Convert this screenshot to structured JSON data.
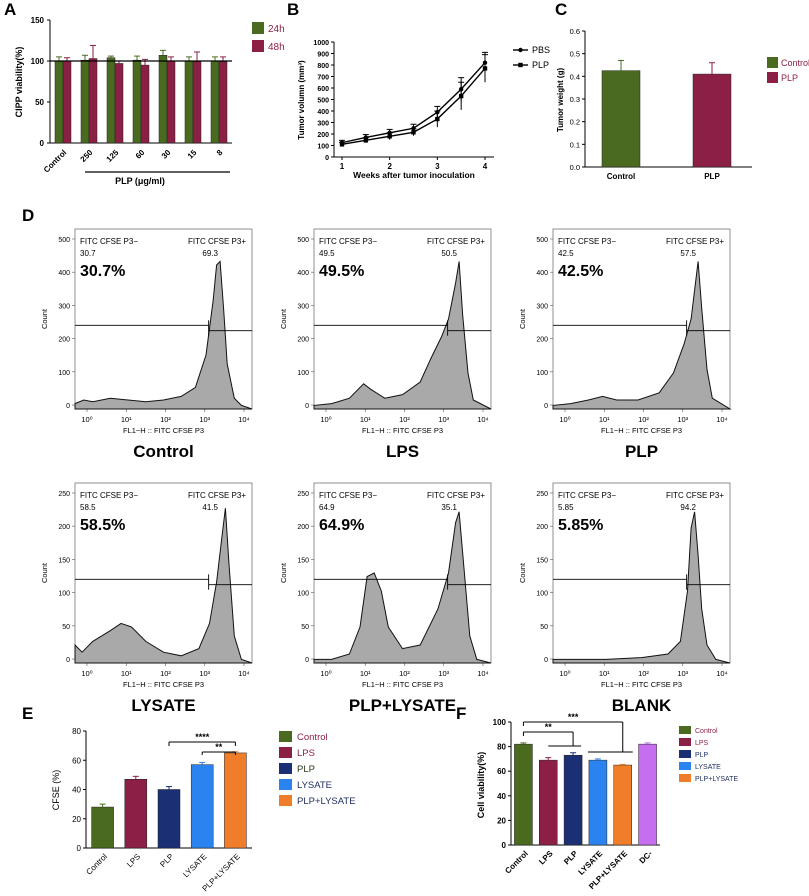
{
  "panel_letters": {
    "a": "A",
    "b": "B",
    "c": "C",
    "d": "D",
    "e": "E",
    "f": "F"
  },
  "colors": {
    "green": "#4a6b1f",
    "maroon": "#8b1f45",
    "navy": "#1b2f74",
    "blue": "#2b83f0",
    "orange": "#ef7d29",
    "violet": "#c56ff0",
    "gray": "#a9a9a9"
  },
  "chart_data": [
    {
      "id": "A",
      "type": "bar",
      "categories": [
        "Control",
        "250",
        "125",
        "60",
        "30",
        "15",
        "8"
      ],
      "series": [
        {
          "name": "24h",
          "values": [
            100,
            101,
            104,
            101,
            107,
            100,
            100
          ],
          "errors": [
            5,
            6,
            2,
            5,
            6,
            5,
            5
          ]
        },
        {
          "name": "48h",
          "values": [
            100,
            103,
            97,
            95,
            100,
            99,
            99
          ],
          "errors": [
            4,
            16,
            3,
            7,
            5,
            12,
            6
          ]
        }
      ],
      "ylabel": "CIPP viability(%)",
      "xlabel": "PLP (μg/ml)",
      "ylim": [
        0,
        150
      ],
      "yticks": [
        0,
        50,
        100,
        150
      ],
      "reference_line": 100
    },
    {
      "id": "B",
      "type": "line",
      "x": [
        1,
        1.5,
        2,
        2.5,
        3,
        3.5,
        4
      ],
      "xticks": [
        "1",
        "2",
        "3",
        "4"
      ],
      "series": [
        {
          "name": "PBS",
          "values": [
            125,
            170,
            210,
            250,
            390,
            590,
            820
          ],
          "errors": [
            20,
            25,
            30,
            35,
            50,
            100,
            90
          ]
        },
        {
          "name": "PLP",
          "values": [
            110,
            145,
            180,
            215,
            330,
            530,
            770
          ],
          "errors": [
            18,
            22,
            30,
            30,
            70,
            120,
            120
          ]
        }
      ],
      "ylabel": "Tumor volumn (mm³)",
      "xlabel": "Weeks after tumor inoculation",
      "ylim": [
        0,
        1000
      ],
      "yticks": [
        0,
        100,
        200,
        300,
        400,
        500,
        600,
        700,
        800,
        900,
        1000
      ]
    },
    {
      "id": "C",
      "type": "bar",
      "categories": [
        "Control",
        "PLP"
      ],
      "values": [
        0.425,
        0.41
      ],
      "errors": [
        0.045,
        0.05
      ],
      "legend": [
        "Control",
        "PLP"
      ],
      "ylabel": "Tumor weight (g)",
      "ylim": [
        0,
        0.6
      ],
      "yticks": [
        "0.0",
        "0.1",
        "0.2",
        "0.3",
        "0.4",
        "0.5",
        "0.6"
      ]
    },
    {
      "id": "E",
      "type": "bar",
      "categories": [
        "Control",
        "LPS",
        "PLP",
        "LYSATE",
        "PLP+LYSATE"
      ],
      "values": [
        28,
        47,
        40,
        57,
        65
      ],
      "errors": [
        2,
        2,
        2,
        1.5,
        0.8
      ],
      "legend": [
        "Control",
        "LPS",
        "PLP",
        "LYSATE",
        "PLP+LYSATE"
      ],
      "ylabel": "CFSE  (%)",
      "ylim": [
        0,
        80
      ],
      "yticks": [
        0,
        20,
        40,
        60,
        80
      ],
      "sig": [
        {
          "text": "****"
        },
        {
          "text": "**"
        }
      ]
    },
    {
      "id": "F",
      "type": "bar",
      "categories": [
        "Control",
        "LPS",
        "PLP",
        "LYSATE",
        "PLP+LYSATE",
        "DC-"
      ],
      "values": [
        82,
        69,
        73,
        69,
        65,
        82
      ],
      "errors": [
        1,
        2,
        2,
        1,
        0.5,
        1
      ],
      "legend": [
        "Control",
        "LPS",
        "PLP",
        "LYSATE",
        "PLP+LYSATE"
      ],
      "ylabel": "Cell viability(%)",
      "ylim": [
        0,
        100
      ],
      "yticks": [
        0,
        20,
        40,
        60,
        80,
        100
      ],
      "sig": [
        {
          "text": "**"
        },
        {
          "text": "***"
        }
      ]
    }
  ],
  "flow": {
    "gate_left": "FITC CFSE P3−",
    "gate_right": "FITC CFSE P3+",
    "xlabel": "FL1−H :: FITC CFSE P3",
    "ylabel": "Count",
    "xticks": [
      "10⁰",
      "10¹",
      "10²",
      "10³",
      "10⁴"
    ],
    "yticks_500": [
      "0",
      "100",
      "200",
      "300",
      "400",
      "500"
    ],
    "yticks_250": [
      "0",
      "50",
      "100",
      "150",
      "200",
      "250"
    ],
    "panels": [
      {
        "title": "Control",
        "left": "30.7",
        "right": "69.3",
        "big": "30.7%"
      },
      {
        "title": "LPS",
        "left": "49.5",
        "right": "50.5",
        "big": "49.5%"
      },
      {
        "title": "PLP",
        "left": "42.5",
        "right": "57.5",
        "big": "42.5%"
      },
      {
        "title": "LYSATE",
        "left": "58.5",
        "right": "41.5",
        "big": "58.5%"
      },
      {
        "title": "PLP+LYSATE",
        "left": "64.9",
        "right": "35.1",
        "big": "64.9%"
      },
      {
        "title": "BLANK",
        "left": "5.85",
        "right": "94.2",
        "big": "5.85%"
      }
    ]
  }
}
